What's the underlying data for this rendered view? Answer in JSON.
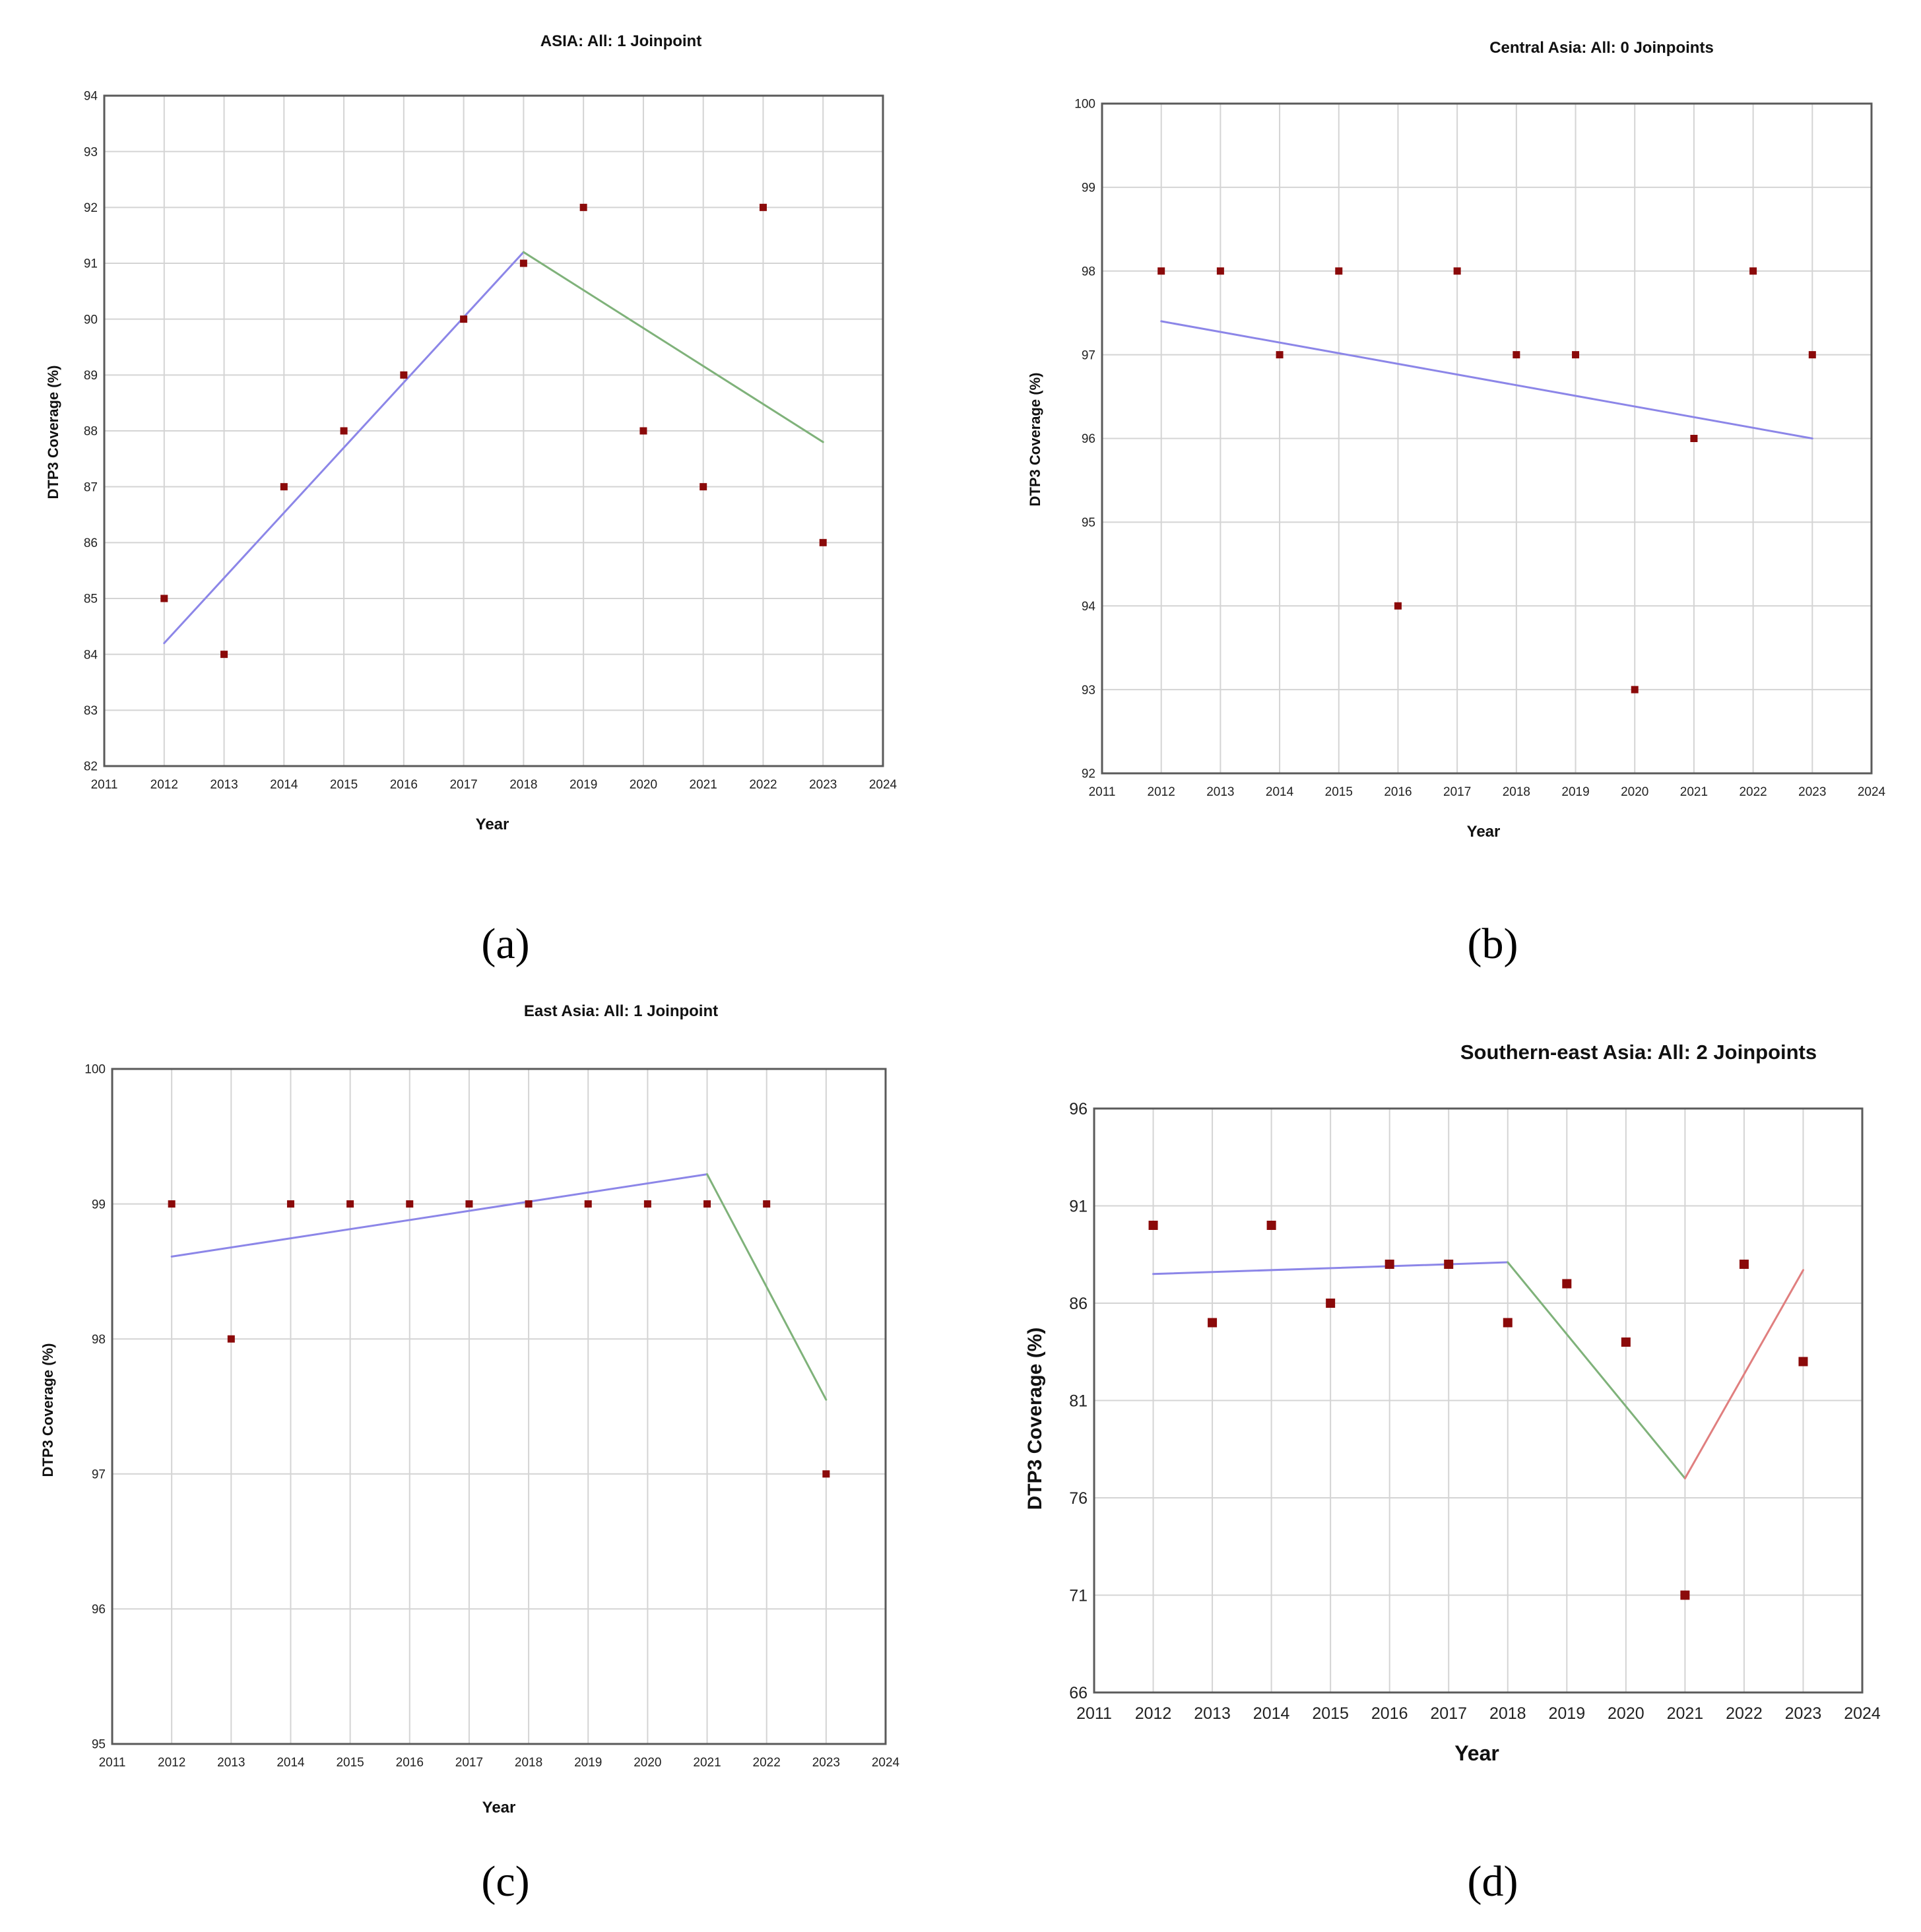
{
  "chart_data": [
    {
      "id": "a",
      "type": "scatter",
      "title": "ASIA: All: 1 Joinpoint",
      "caption": "(a)",
      "xlabel": "Year",
      "ylabel": "DTP3 Coverage (%)",
      "xlim": [
        2011,
        2024
      ],
      "ylim": [
        82,
        94
      ],
      "xticks": [
        2011,
        2012,
        2013,
        2014,
        2015,
        2016,
        2017,
        2018,
        2019,
        2020,
        2021,
        2022,
        2023,
        2024
      ],
      "yticks": [
        82,
        83,
        84,
        85,
        86,
        87,
        88,
        89,
        90,
        91,
        92,
        93,
        94
      ],
      "grid": true,
      "points": {
        "x": [
          2012,
          2013,
          2014,
          2015,
          2016,
          2017,
          2018,
          2019,
          2020,
          2021,
          2022,
          2023
        ],
        "y": [
          85,
          84,
          87,
          88,
          89,
          90,
          91,
          92,
          88,
          87,
          92,
          86
        ]
      },
      "segments": [
        {
          "x": [
            2012,
            2018
          ],
          "y": [
            84.2,
            91.2
          ],
          "color": "#8c86e8"
        },
        {
          "x": [
            2018,
            2023
          ],
          "y": [
            91.2,
            87.8
          ],
          "color": "#7fb27a"
        }
      ]
    },
    {
      "id": "b",
      "type": "scatter",
      "title": "Central Asia: All: 0 Joinpoints",
      "caption": "(b)",
      "xlabel": "Year",
      "ylabel": "DTP3 Coverage (%)",
      "xlim": [
        2011,
        2024
      ],
      "ylim": [
        92,
        100
      ],
      "xticks": [
        2011,
        2012,
        2013,
        2014,
        2015,
        2016,
        2017,
        2018,
        2019,
        2020,
        2021,
        2022,
        2023,
        2024
      ],
      "yticks": [
        92,
        93,
        94,
        95,
        96,
        97,
        98,
        99,
        100
      ],
      "grid": true,
      "points": {
        "x": [
          2012,
          2013,
          2014,
          2015,
          2016,
          2017,
          2018,
          2019,
          2020,
          2021,
          2022,
          2023
        ],
        "y": [
          98,
          98,
          97,
          98,
          94,
          98,
          97,
          97,
          93,
          96,
          98,
          97
        ]
      },
      "segments": [
        {
          "x": [
            2012,
            2023
          ],
          "y": [
            97.4,
            96.0
          ],
          "color": "#8c86e8"
        }
      ]
    },
    {
      "id": "c",
      "type": "scatter",
      "title": "East  Asia: All: 1 Joinpoint",
      "caption": "(c)",
      "xlabel": "Year",
      "ylabel": "DTP3 Coverage (%)",
      "xlim": [
        2011,
        2024
      ],
      "ylim": [
        95,
        100
      ],
      "xticks": [
        2011,
        2012,
        2013,
        2014,
        2015,
        2016,
        2017,
        2018,
        2019,
        2020,
        2021,
        2022,
        2023,
        2024
      ],
      "yticks": [
        95,
        96,
        97,
        98,
        99,
        100
      ],
      "grid": true,
      "points": {
        "x": [
          2012,
          2013,
          2014,
          2015,
          2016,
          2017,
          2018,
          2019,
          2020,
          2021,
          2022,
          2023
        ],
        "y": [
          99,
          98,
          99,
          99,
          99,
          99,
          99,
          99,
          99,
          99,
          99,
          97
        ]
      },
      "segments": [
        {
          "x": [
            2012,
            2021
          ],
          "y": [
            98.61,
            99.22
          ],
          "color": "#8c86e8"
        },
        {
          "x": [
            2021,
            2023
          ],
          "y": [
            99.22,
            97.55
          ],
          "color": "#7fb27a"
        }
      ]
    },
    {
      "id": "d",
      "type": "scatter",
      "title": "Southern-east  Asia: All: 2 Joinpoints",
      "caption": "(d)",
      "xlabel": "Year",
      "ylabel": "DTP3 Coverage (%)",
      "xlim": [
        2011,
        2024
      ],
      "ylim": [
        66,
        96
      ],
      "xticks": [
        2011,
        2012,
        2013,
        2014,
        2015,
        2016,
        2017,
        2018,
        2019,
        2020,
        2021,
        2022,
        2023,
        2024
      ],
      "yticks": [
        66,
        71,
        76,
        81,
        86,
        91,
        96
      ],
      "grid": true,
      "points": {
        "x": [
          2012,
          2013,
          2014,
          2015,
          2016,
          2017,
          2018,
          2019,
          2020,
          2021,
          2022,
          2023
        ],
        "y": [
          90,
          85,
          90,
          86,
          88,
          88,
          85,
          87,
          84,
          71,
          88,
          83
        ]
      },
      "segments": [
        {
          "x": [
            2012,
            2018
          ],
          "y": [
            87.5,
            88.1
          ],
          "color": "#8c86e8"
        },
        {
          "x": [
            2018,
            2021
          ],
          "y": [
            88.1,
            77.0
          ],
          "color": "#7fb27a"
        },
        {
          "x": [
            2021,
            2023
          ],
          "y": [
            77.0,
            87.7
          ],
          "color": "#e07f7f"
        }
      ]
    }
  ],
  "colors": {
    "point": "#8b0a0a",
    "grid": "#d4d4d4",
    "frame": "#5a5a5a",
    "tick_text": "#222222",
    "title_text": "#111111"
  }
}
